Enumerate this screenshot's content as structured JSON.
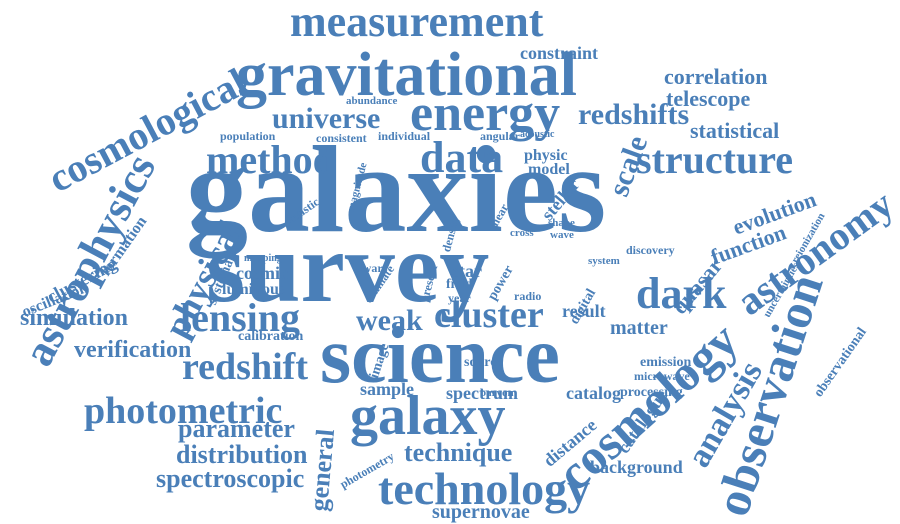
{
  "cloud": {
    "color": "#4a7fb8",
    "words": [
      "galaxies",
      "survey",
      "science",
      "gravitational",
      "measurement",
      "cosmological",
      "energy",
      "data",
      "method",
      "structure",
      "astrophysics",
      "cosmology",
      "observation",
      "lensing",
      "cluster",
      "galaxy",
      "technology",
      "astronomy",
      "dark",
      "weak",
      "photometric",
      "redshift",
      "universe",
      "redshifts",
      "physical",
      "analysis",
      "parameter",
      "distribution",
      "spectroscopic",
      "technique",
      "verification",
      "simulation",
      "correlation",
      "telescope",
      "statistical",
      "constraint",
      "scale",
      "evolution",
      "function",
      "quasar",
      "general",
      "supernovae",
      "background",
      "catalogue",
      "catalog",
      "spectrum",
      "sample",
      "distance",
      "result",
      "matter",
      "cosmic",
      "luminous",
      "calibration",
      "clustering",
      "oscillation",
      "formation",
      "systematic",
      "physic",
      "model",
      "stellar",
      "population",
      "consistent",
      "individual",
      "angular",
      "acoustic",
      "abundance",
      "statistic",
      "magnitude",
      "field",
      "year",
      "radio",
      "source",
      "image",
      "star",
      "digital",
      "emission",
      "microwave",
      "processing",
      "discovery",
      "system",
      "reionization",
      "photometry",
      "shear",
      "power",
      "shape",
      "wave",
      "uncertainties",
      "observational",
      "density",
      "present",
      "estimate",
      "mapping",
      "baryon",
      "dwarf",
      "cross"
    ]
  }
}
